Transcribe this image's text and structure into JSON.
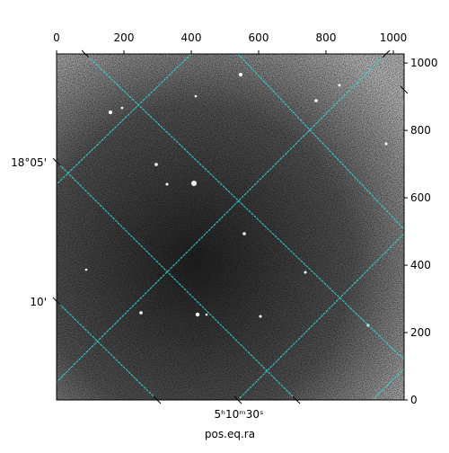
{
  "chart_data": {
    "type": "image",
    "xlabel": "pos.eq.ra",
    "xlim": [
      0,
      1032
    ],
    "xticks": [
      0,
      200,
      400,
      600,
      800,
      1000
    ],
    "ylim": [
      0,
      1027
    ],
    "yticks": [
      0,
      200,
      400,
      600,
      800,
      1000
    ],
    "wcs_labels": {
      "dec": [
        "18°05'",
        "10'"
      ],
      "ra": [
        "5ʰ10ᵐ30ˢ"
      ]
    },
    "grid_color": "#33d6d6"
  }
}
